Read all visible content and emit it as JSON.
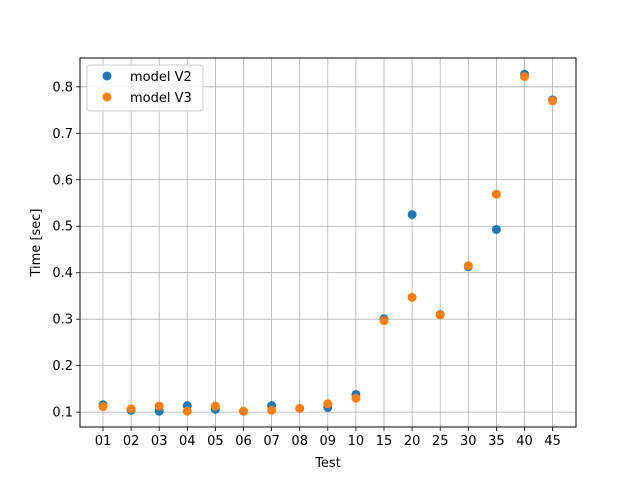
{
  "chart_data": {
    "type": "scatter",
    "xlabel": "Test",
    "ylabel": "Time [sec]",
    "categories": [
      "01",
      "02",
      "03",
      "04",
      "05",
      "06",
      "07",
      "08",
      "09",
      "10",
      "15",
      "20",
      "25",
      "30",
      "35",
      "40",
      "45"
    ],
    "ylim": [
      0.068,
      0.862
    ],
    "yticks": [
      0.1,
      0.2,
      0.3,
      0.4,
      0.5,
      0.6,
      0.7,
      0.8
    ],
    "grid": true,
    "legend_position": "top-left",
    "series": [
      {
        "name": "model V2",
        "color": "#1f77b4",
        "values": [
          0.116,
          0.104,
          0.102,
          0.114,
          0.106,
          0.102,
          0.114,
          0.108,
          0.11,
          0.138,
          0.301,
          0.525,
          0.31,
          0.413,
          0.493,
          0.827,
          0.772
        ]
      },
      {
        "name": "model V3",
        "color": "#ff7f0e",
        "values": [
          0.112,
          0.107,
          0.113,
          0.102,
          0.113,
          0.102,
          0.104,
          0.108,
          0.118,
          0.13,
          0.297,
          0.347,
          0.309,
          0.415,
          0.569,
          0.822,
          0.77
        ]
      }
    ]
  }
}
